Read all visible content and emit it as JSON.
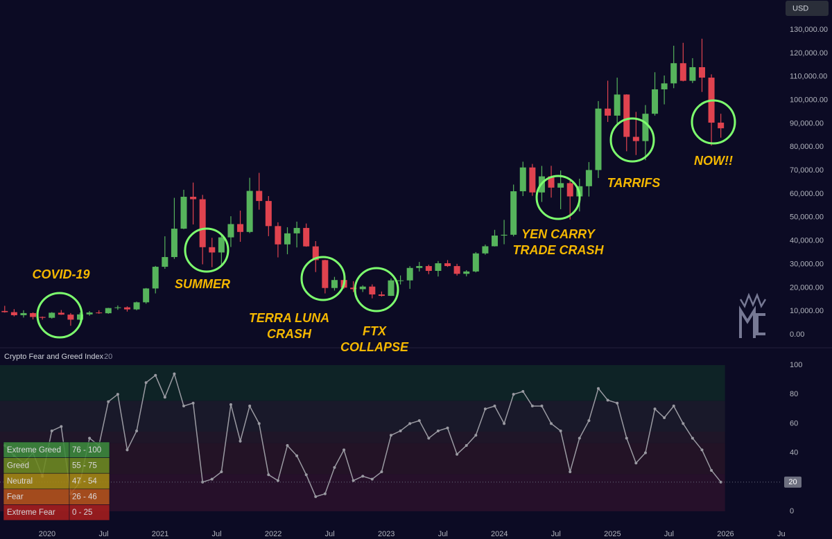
{
  "chart_data": [
    {
      "type": "candlestick",
      "currency": "USD",
      "x": [
        "2019-08",
        "2019-09",
        "2019-10",
        "2019-11",
        "2019-12",
        "2020-01",
        "2020-02",
        "2020-03",
        "2020-04",
        "2020-05",
        "2020-06",
        "2020-07",
        "2020-08",
        "2020-09",
        "2020-10",
        "2020-11",
        "2020-12",
        "2021-01",
        "2021-02",
        "2021-03",
        "2021-04",
        "2021-05",
        "2021-06",
        "2021-07",
        "2021-08",
        "2021-09",
        "2021-10",
        "2021-11",
        "2021-12",
        "2022-01",
        "2022-02",
        "2022-03",
        "2022-04",
        "2022-05",
        "2022-06",
        "2022-07",
        "2022-08",
        "2022-09",
        "2022-10",
        "2022-11",
        "2022-12",
        "2023-01",
        "2023-02",
        "2023-03",
        "2023-04",
        "2023-05",
        "2023-06",
        "2023-07",
        "2023-08",
        "2023-09",
        "2023-10",
        "2023-11",
        "2023-12",
        "2024-01",
        "2024-02",
        "2024-03",
        "2024-04",
        "2024-05",
        "2024-06",
        "2024-07",
        "2024-08",
        "2024-09",
        "2024-10",
        "2024-11",
        "2024-12",
        "2025-01",
        "2025-02",
        "2025-03",
        "2025-04",
        "2025-05",
        "2025-06",
        "2025-07",
        "2025-08",
        "2025-09",
        "2025-10",
        "2025-11",
        "2025-12"
      ],
      "open": [
        10100,
        9600,
        8300,
        9200,
        7550,
        7200,
        9350,
        8550,
        6400,
        8650,
        9450,
        9140,
        11350,
        11650,
        10780,
        13800,
        19700,
        28950,
        33100,
        45200,
        58800,
        57750,
        37300,
        35050,
        41500,
        47150,
        43800,
        61300,
        57000,
        46300,
        38500,
        43200,
        45500,
        37650,
        31800,
        19900,
        23300,
        20050,
        19400,
        20500,
        17150,
        16550,
        23150,
        23150,
        28450,
        29250,
        27200,
        30450,
        29250,
        25950,
        26950,
        34650,
        37700,
        42250,
        42600,
        61150,
        71300,
        60650,
        67500,
        62700,
        64600,
        58950,
        63300,
        70200,
        96400,
        93400,
        102400,
        84350,
        82550,
        94200,
        104600,
        107150,
        115750,
        108250,
        114050,
        109600,
        90400
      ],
      "high": [
        12300,
        10900,
        10400,
        9500,
        7750,
        9600,
        10500,
        9200,
        9450,
        10070,
        10400,
        11450,
        12470,
        12070,
        14100,
        19900,
        29300,
        41950,
        58350,
        61780,
        64850,
        59600,
        41300,
        42400,
        50500,
        52900,
        66900,
        69000,
        59100,
        47900,
        45800,
        48200,
        47400,
        39900,
        31950,
        24650,
        25200,
        22800,
        21050,
        21450,
        18400,
        23950,
        25250,
        29200,
        31000,
        29850,
        31400,
        31800,
        30200,
        27500,
        35200,
        38400,
        44700,
        48950,
        64000,
        73750,
        72800,
        71950,
        72000,
        70000,
        65600,
        66500,
        73600,
        99600,
        108300,
        109600,
        102500,
        95000,
        97900,
        111900,
        110500,
        123200,
        124450,
        117900,
        126200,
        111000,
        94200
      ],
      "low": [
        9400,
        7800,
        7300,
        6500,
        6400,
        6850,
        8450,
        3800,
        6150,
        8100,
        8900,
        8900,
        10600,
        9850,
        10400,
        13200,
        17600,
        28100,
        32300,
        45000,
        47000,
        30000,
        28800,
        29300,
        37400,
        39600,
        43300,
        53300,
        42000,
        32950,
        34300,
        37200,
        37500,
        26700,
        17600,
        18800,
        19600,
        18200,
        18200,
        15500,
        16250,
        16500,
        21400,
        19550,
        26950,
        25800,
        24800,
        28900,
        25200,
        24900,
        26550,
        34100,
        37600,
        38550,
        41900,
        59100,
        59200,
        56600,
        58450,
        53500,
        49100,
        52550,
        58900,
        66800,
        90700,
        89200,
        78200,
        76600,
        74400,
        93400,
        98200,
        105100,
        108000,
        107300,
        103500,
        80600,
        84000
      ],
      "close": [
        9600,
        8300,
        9200,
        7550,
        7200,
        9350,
        8550,
        6400,
        8650,
        9450,
        9140,
        11350,
        11650,
        10780,
        13800,
        19700,
        28950,
        33100,
        45200,
        58800,
        57750,
        37300,
        35050,
        41500,
        47150,
        43800,
        61300,
        57000,
        46300,
        38500,
        43200,
        45500,
        37650,
        31800,
        19900,
        23300,
        20050,
        19400,
        20500,
        17150,
        16550,
        23150,
        23150,
        28450,
        29250,
        27200,
        30450,
        29250,
        25950,
        26950,
        34650,
        37700,
        42250,
        42600,
        61150,
        71300,
        60650,
        67500,
        62700,
        64600,
        58950,
        63300,
        70200,
        96400,
        93400,
        102400,
        84350,
        82550,
        94200,
        104600,
        107150,
        115750,
        108250,
        114050,
        109600,
        90400,
        88000
      ],
      "up_color": "#56b45c",
      "down_color": "#e0434f",
      "xlim": [
        "2019-08",
        "2026-07"
      ],
      "ylim": [
        -5000,
        142700
      ],
      "yticks": [
        {
          "value": 0,
          "label": "0.00"
        },
        {
          "value": 10000,
          "label": "10,000.00"
        },
        {
          "value": 20000,
          "label": "20,000.00"
        },
        {
          "value": 30000,
          "label": "30,000.00"
        },
        {
          "value": 40000,
          "label": "40,000.00"
        },
        {
          "value": 50000,
          "label": "50,000.00"
        },
        {
          "value": 60000,
          "label": "60,000.00"
        },
        {
          "value": 70000,
          "label": "70,000.00"
        },
        {
          "value": 80000,
          "label": "80,000.00"
        },
        {
          "value": 90000,
          "label": "90,000.00"
        },
        {
          "value": 100000,
          "label": "100,000.00"
        },
        {
          "value": 110000,
          "label": "110,000.00"
        },
        {
          "value": 120000,
          "label": "120,000.00"
        },
        {
          "value": 130000,
          "label": "130,000.00"
        }
      ],
      "grid": false,
      "annotations": [
        {
          "lines": [
            "COVID-19"
          ]
        },
        {
          "lines": [
            "SUMMER"
          ]
        },
        {
          "lines": [
            "TERRA LUNA",
            "CRASH"
          ]
        },
        {
          "lines": [
            "FTX",
            "COLLAPSE"
          ]
        },
        {
          "lines": [
            "YEN CARRY",
            "TRADE CRASH"
          ]
        },
        {
          "lines": [
            "TARRIFS"
          ]
        },
        {
          "lines": [
            "NOW!!"
          ]
        }
      ]
    },
    {
      "type": "line",
      "title": "Crypto Fear and Greed Index",
      "x": [
        "2019-08",
        "2019-09",
        "2019-10",
        "2019-11",
        "2019-12",
        "2020-01",
        "2020-02",
        "2020-03",
        "2020-04",
        "2020-05",
        "2020-06",
        "2020-07",
        "2020-08",
        "2020-09",
        "2020-10",
        "2020-11",
        "2020-12",
        "2021-01",
        "2021-02",
        "2021-03",
        "2021-04",
        "2021-05",
        "2021-06",
        "2021-07",
        "2021-08",
        "2021-09",
        "2021-10",
        "2021-11",
        "2021-12",
        "2022-01",
        "2022-02",
        "2022-03",
        "2022-04",
        "2022-05",
        "2022-06",
        "2022-07",
        "2022-08",
        "2022-09",
        "2022-10",
        "2022-11",
        "2022-12",
        "2023-01",
        "2023-02",
        "2023-03",
        "2023-04",
        "2023-05",
        "2023-06",
        "2023-07",
        "2023-08",
        "2023-09",
        "2023-10",
        "2023-11",
        "2023-12",
        "2024-01",
        "2024-02",
        "2024-03",
        "2024-04",
        "2024-05",
        "2024-06",
        "2024-07",
        "2024-08",
        "2024-09",
        "2024-10",
        "2024-11",
        "2024-12",
        "2025-01",
        "2025-02",
        "2025-03",
        "2025-04",
        "2025-05",
        "2025-06",
        "2025-07",
        "2025-08",
        "2025-09",
        "2025-10",
        "2025-11",
        "2025-12"
      ],
      "series": [
        {
          "color": "#9a9aa2",
          "values": [
            45,
            38,
            33,
            40,
            24,
            55,
            58,
            12,
            20,
            50,
            45,
            75,
            80,
            42,
            55,
            88,
            93,
            78,
            94,
            72,
            74,
            20,
            22,
            27,
            73,
            48,
            72,
            60,
            25,
            21,
            45,
            38,
            25,
            10,
            12,
            30,
            42,
            21,
            24,
            22,
            27,
            52,
            55,
            60,
            62,
            50,
            55,
            57,
            39,
            45,
            52,
            70,
            72,
            60,
            80,
            82,
            72,
            72,
            60,
            55,
            27,
            50,
            62,
            84,
            76,
            74,
            50,
            33,
            40,
            70,
            64,
            72,
            60,
            50,
            42,
            28,
            20
          ]
        }
      ],
      "xlim": [
        "2019-08",
        "2026-07"
      ],
      "xticks": [
        {
          "value": "2020-01",
          "label": "2020"
        },
        {
          "value": "2020-07",
          "label": "Jul"
        },
        {
          "value": "2021-01",
          "label": "2021"
        },
        {
          "value": "2021-07",
          "label": "Jul"
        },
        {
          "value": "2022-01",
          "label": "2022"
        },
        {
          "value": "2022-07",
          "label": "Jul"
        },
        {
          "value": "2023-01",
          "label": "2023"
        },
        {
          "value": "2023-07",
          "label": "Jul"
        },
        {
          "value": "2024-01",
          "label": "2024"
        },
        {
          "value": "2024-07",
          "label": "Jul"
        },
        {
          "value": "2025-01",
          "label": "2025"
        },
        {
          "value": "2025-07",
          "label": "Jul"
        },
        {
          "value": "2026-01",
          "label": "2026"
        },
        {
          "value": "2026-07",
          "label": "Jul"
        }
      ],
      "ylim": [
        -10.4,
        110.4
      ],
      "yticks": [
        0,
        40,
        60,
        80,
        100
      ],
      "zones": [
        {
          "name": "Extreme Greed",
          "range": "76 - 100",
          "from": 76,
          "to": 100,
          "color": "#3d8b3d",
          "band_color": "#0e2326"
        },
        {
          "name": "Greed",
          "range": "55 - 75",
          "from": 55,
          "to": 75,
          "color": "#6e8b22",
          "band_color": "#19192a"
        },
        {
          "name": "Neutral",
          "range": "47 - 54",
          "from": 47,
          "to": 54,
          "color": "#a68a14",
          "band_color": "#1f1628"
        },
        {
          "name": "Fear",
          "range": "26 - 46",
          "from": 26,
          "to": 46,
          "color": "#b5541c",
          "band_color": "#231326"
        },
        {
          "name": "Extreme Fear",
          "range": "0 - 25",
          "from": 0,
          "to": 25,
          "color": "#a61e1e",
          "band_color": "#26102a"
        }
      ]
    }
  ]
}
